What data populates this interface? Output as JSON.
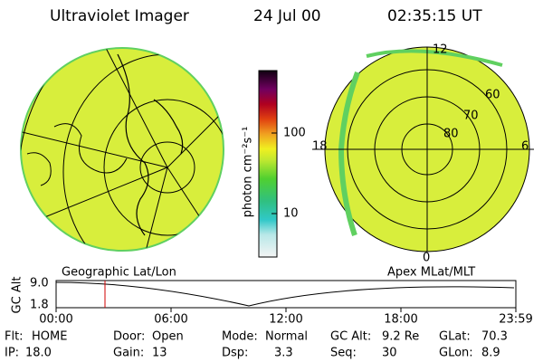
{
  "header": {
    "title": "Ultraviolet Imager",
    "date": "24 Jul 00",
    "time": "02:35:15 UT"
  },
  "colorbar": {
    "unit_label": "photon cm⁻²s⁻¹",
    "ticks": [
      "100",
      "10"
    ]
  },
  "polar": {
    "mlt_labels": [
      "12",
      "18",
      "6",
      "0"
    ],
    "lat_labels": [
      "60",
      "70",
      "80"
    ]
  },
  "strip": {
    "left_title": "Geographic Lat/Lon",
    "right_title": "Apex MLat/MLT",
    "y_label": "GC Alt",
    "y_ticks": [
      "9.0",
      "1.8"
    ],
    "x_ticks": [
      "00:00",
      "06:00",
      "12:00",
      "18:00",
      "23:59"
    ]
  },
  "footer": {
    "rows": [
      [
        {
          "label": "Flt:",
          "value": "HOME"
        },
        {
          "label": "Door:",
          "value": "Open"
        },
        {
          "label": "Mode:",
          "value": "Normal"
        },
        {
          "label": "GC Alt:",
          "value": "9.2 Re"
        },
        {
          "label": "GLat:",
          "value": "70.3"
        }
      ],
      [
        {
          "label": "IP:",
          "value": "18.0"
        },
        {
          "label": "Gain:",
          "value": "13"
        },
        {
          "label": "Dsp:",
          "value": "3.3"
        },
        {
          "label": "Seq:",
          "value": "30"
        },
        {
          "label": "GLon:",
          "value": "8.9"
        }
      ]
    ]
  }
}
